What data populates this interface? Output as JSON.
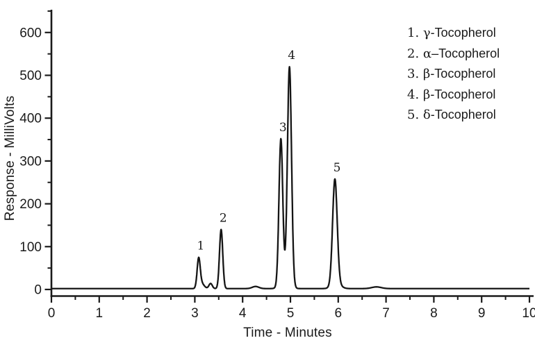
{
  "figure": {
    "background_color": "#ffffff",
    "line_color": "#1a1a1a"
  },
  "chart_data": {
    "type": "line",
    "title": "",
    "xlabel": "Time - Minutes",
    "ylabel": "Response - MilliVolts",
    "xlim": [
      0,
      10
    ],
    "ylim": [
      0,
      650
    ],
    "x_ticks": [
      0,
      1,
      2,
      3,
      4,
      5,
      6,
      7,
      8,
      9,
      10
    ],
    "y_ticks": [
      0,
      100,
      200,
      300,
      400,
      500,
      600
    ],
    "x_minor_step": 0.5,
    "y_minor_step": 50,
    "grid": false,
    "legend_position": "top-right",
    "baseline_mv": 2,
    "peaks": [
      {
        "label": "1",
        "compound": "γ-Tocopherol",
        "time_min": 3.08,
        "height_mv": 75,
        "sigma_min": 0.032
      },
      {
        "label": "2",
        "compound": "α-Tocopherol",
        "time_min": 3.55,
        "height_mv": 140,
        "sigma_min": 0.034
      },
      {
        "label": "3",
        "compound": "β-Tocopherol",
        "time_min": 4.8,
        "height_mv": 352,
        "sigma_min": 0.04
      },
      {
        "label": "4",
        "compound": "β-Tocopherol",
        "time_min": 4.98,
        "height_mv": 520,
        "sigma_min": 0.043
      },
      {
        "label": "5",
        "compound": "δ-Tocopherol",
        "time_min": 5.93,
        "height_mv": 258,
        "sigma_min": 0.048
      }
    ],
    "minor_features": [
      {
        "time_min": 3.14,
        "height_mv": 12,
        "sigma_min": 0.055
      },
      {
        "time_min": 3.33,
        "height_mv": 12,
        "sigma_min": 0.035
      },
      {
        "time_min": 4.27,
        "height_mv": 5,
        "sigma_min": 0.07
      },
      {
        "time_min": 4.89,
        "height_mv": 10,
        "sigma_min": 0.1
      },
      {
        "time_min": 5.96,
        "height_mv": 12,
        "sigma_min": 0.09
      },
      {
        "time_min": 6.8,
        "height_mv": 4,
        "sigma_min": 0.1
      }
    ],
    "legend": [
      {
        "prefix": "1. ",
        "greek": "γ",
        "suffix": "-Tocopherol"
      },
      {
        "prefix": "2. ",
        "greek": "α",
        "suffix": "–Tocopherol"
      },
      {
        "prefix": "3. ",
        "greek": "β",
        "suffix": "-Tocopherol"
      },
      {
        "prefix": "4. ",
        "greek": "β",
        "suffix": "-Tocopherol"
      },
      {
        "prefix": "5. ",
        "greek": "δ",
        "suffix": "-Tocopherol"
      }
    ]
  }
}
